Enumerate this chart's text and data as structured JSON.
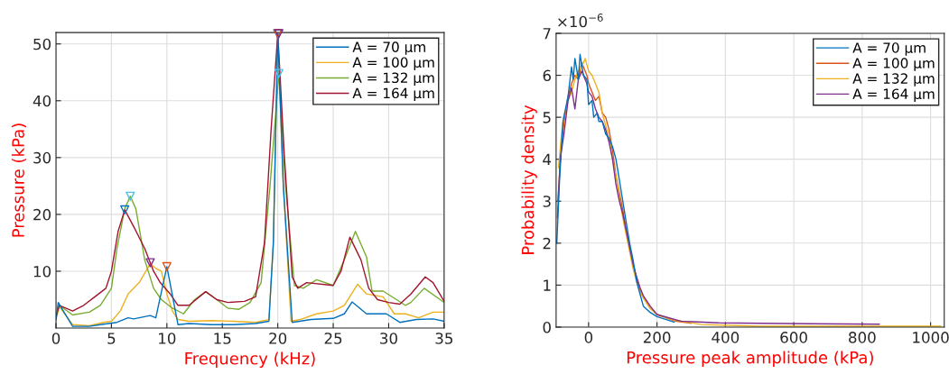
{
  "chart_data": [
    {
      "type": "line",
      "xlabel": "Frequency (kHz)",
      "ylabel": "Pressure (kPa)",
      "xlim": [
        0,
        35
      ],
      "ylim": [
        0,
        52
      ],
      "xticks": [
        0,
        5,
        10,
        15,
        20,
        25,
        30,
        35
      ],
      "yticks": [
        10,
        20,
        30,
        40,
        50
      ],
      "grid": true,
      "legend": "top right",
      "marker": "none",
      "line_style": "solid",
      "series": [
        {
          "name": "A = 70 μm",
          "color": "#0072bd",
          "x": [
            0,
            0.2,
            1.5,
            3,
            4,
            5.5,
            6.5,
            7,
            8.5,
            9,
            10,
            11,
            12,
            14,
            16,
            18,
            19.2,
            19.6,
            20,
            20.5,
            21.3,
            23,
            25,
            26,
            26.7,
            28,
            29.8,
            31,
            32.5,
            34,
            35
          ],
          "values": [
            1.5,
            4.5,
            0.3,
            0.3,
            0.6,
            1.0,
            1.8,
            1.6,
            2.2,
            1.8,
            10.8,
            0.6,
            0.8,
            0.6,
            0.6,
            0.8,
            1.2,
            15,
            51.8,
            25,
            1.0,
            1.5,
            1.7,
            2.5,
            4.6,
            2.5,
            2.5,
            1.0,
            1.5,
            1.6,
            1.2
          ]
        },
        {
          "name": "A = 100 μm",
          "color": "#edb120",
          "x": [
            0,
            0.3,
            1.5,
            3,
            4.3,
            5,
            5.8,
            6.5,
            7.5,
            8.5,
            9,
            9.5,
            10,
            10.5,
            11,
            12,
            14,
            16,
            18,
            19.2,
            19.6,
            20,
            20.5,
            21.2,
            22,
            23.5,
            25,
            26,
            27.2,
            28,
            29.5,
            30.5,
            31.5,
            32.7,
            34,
            35
          ],
          "values": [
            1.5,
            3.8,
            0.6,
            0.4,
            1.0,
            1.2,
            3.0,
            6.0,
            8.0,
            11.3,
            10.5,
            10.0,
            6.0,
            3.0,
            1.5,
            1.2,
            1.3,
            1.2,
            1.0,
            1.5,
            15,
            51.5,
            25,
            1.2,
            1.5,
            2.5,
            3.0,
            4.0,
            7.7,
            6.0,
            5.5,
            2.5,
            2.5,
            1.8,
            2.8,
            2.8
          ]
        },
        {
          "name": "A = 132 μm",
          "color": "#77ac30",
          "x": [
            0,
            0.3,
            1.5,
            3,
            4,
            5,
            5.5,
            6.2,
            6.7,
            7.2,
            8,
            8.8,
            9.5,
            10.5,
            11.5,
            12.5,
            13.5,
            14.5,
            15.5,
            16.5,
            17.5,
            18.5,
            19.3,
            20.1,
            20.7,
            21.5,
            22.3,
            23.5,
            25,
            26,
            27,
            28,
            28.5,
            29.5,
            31.5,
            32,
            33.2,
            35
          ],
          "values": [
            2.0,
            4.0,
            2.3,
            2.8,
            4.0,
            7.0,
            14,
            21,
            23.2,
            21,
            12,
            7.0,
            5.0,
            3.5,
            2.5,
            5.0,
            6.4,
            5.0,
            3.5,
            3.3,
            4.5,
            8.0,
            25,
            44.8,
            25,
            7.5,
            7.0,
            8.5,
            7.5,
            12,
            17,
            12.5,
            6.5,
            6.5,
            4.0,
            4.5,
            7.0,
            4.5
          ]
        },
        {
          "name": "A = 164 μm",
          "color": "#a2142f",
          "x": [
            0,
            0.3,
            1.5,
            2.5,
            3.5,
            4.5,
            5,
            5.6,
            6.2,
            7.1,
            8,
            8.8,
            9.4,
            10.3,
            11,
            12,
            13.5,
            14.5,
            15.5,
            17,
            18,
            18.8,
            19.4,
            20,
            20.6,
            21.3,
            21.8,
            22.6,
            25,
            25.7,
            26.5,
            27.5,
            28.2,
            29,
            30,
            31,
            32,
            33.3,
            34,
            35
          ],
          "values": [
            2.0,
            4.0,
            3.0,
            4.0,
            5.5,
            7.0,
            10,
            17,
            20.8,
            17.5,
            14,
            10,
            8.0,
            6.0,
            4.0,
            4.0,
            6.4,
            5.0,
            4.5,
            4.7,
            5.5,
            15,
            35,
            51.8,
            30,
            9.0,
            7.0,
            8.0,
            7.5,
            10,
            16,
            12,
            7.0,
            5.0,
            4.5,
            4.2,
            6.0,
            9.0,
            8.0,
            4.7
          ]
        },
        {
          "type": "scatter",
          "marker": "triangle",
          "x": [
            6.2,
            6.7,
            8.5,
            10,
            20,
            20,
            20.1,
            20.1
          ],
          "values": [
            20.8,
            23.2,
            11.5,
            10.8,
            51.8,
            51.8,
            51.8,
            44.8
          ],
          "colors": [
            "#0072bd",
            "#4dbeee",
            "#7e2f8e",
            "#d95319",
            "#0072bd",
            "#d95319",
            "#7e2f8e",
            "#4dbeee"
          ]
        }
      ]
    },
    {
      "type": "line",
      "xlabel": "Pressure peak amplitude (kPa)",
      "ylabel": "Probability density",
      "annotations": [
        "×10$^{−6}$"
      ],
      "xlim": [
        -95,
        1040
      ],
      "ylim": [
        0,
        7
      ],
      "xticks": [
        0,
        200,
        400,
        600,
        800,
        1000
      ],
      "yticks": [
        0,
        1,
        2,
        3,
        4,
        5,
        6,
        7
      ],
      "grid": true,
      "legend": "top right",
      "marker": "none",
      "line_style": "solid",
      "series": [
        {
          "name": "A = 70 μm",
          "color": "#0072bd",
          "x": [
            -93,
            -85,
            -75,
            -60,
            -50,
            -45,
            -40,
            -30,
            -25,
            -15,
            -5,
            0,
            10,
            15,
            25,
            30,
            40,
            50,
            60,
            70,
            80,
            90,
            100,
            110,
            120,
            130,
            140,
            150,
            160,
            180,
            200,
            250
          ],
          "values": [
            2.0,
            3.5,
            4.9,
            5.5,
            6.2,
            5.9,
            6.4,
            5.9,
            6.5,
            6.0,
            5.9,
            5.3,
            5.4,
            5.0,
            5.1,
            4.9,
            4.9,
            4.6,
            4.5,
            4.3,
            4.0,
            3.5,
            3.0,
            2.5,
            2.0,
            1.6,
            1.1,
            0.8,
            0.5,
            0.35,
            0.25,
            0.12
          ]
        },
        {
          "name": "A = 100 μm",
          "color": "#d95319",
          "x": [
            -90,
            -80,
            -70,
            -60,
            -50,
            -40,
            -30,
            -20,
            -15,
            -5,
            0,
            10,
            20,
            30,
            40,
            50,
            60,
            70,
            80,
            90,
            100,
            110,
            120,
            130,
            140,
            150,
            160,
            180,
            200,
            250,
            300
          ],
          "values": [
            3.0,
            4.3,
            5.0,
            5.5,
            5.8,
            6.0,
            5.9,
            6.3,
            6.2,
            6.0,
            5.8,
            5.6,
            5.4,
            5.5,
            5.1,
            5.0,
            4.7,
            4.2,
            3.6,
            3.2,
            2.8,
            2.3,
            1.9,
            1.5,
            1.2,
            0.9,
            0.7,
            0.45,
            0.3,
            0.15,
            0.09
          ]
        },
        {
          "name": "A = 132 μm",
          "color": "#edb120",
          "x": [
            -88,
            -78,
            -70,
            -60,
            -50,
            -40,
            -30,
            -20,
            -10,
            0,
            10,
            20,
            30,
            40,
            50,
            60,
            70,
            80,
            90,
            100,
            110,
            120,
            130,
            140,
            150,
            160,
            180,
            200,
            250,
            330,
            500,
            1030
          ],
          "values": [
            3.8,
            4.7,
            5.1,
            5.4,
            5.6,
            5.9,
            6.1,
            6.2,
            6.4,
            6.1,
            6.0,
            5.8,
            5.6,
            5.1,
            4.8,
            4.5,
            4.0,
            3.6,
            3.1,
            2.6,
            2.2,
            1.8,
            1.4,
            1.1,
            0.85,
            0.7,
            0.45,
            0.3,
            0.17,
            0.06,
            0.02,
            0.02
          ]
        },
        {
          "name": "A = 164 μm",
          "color": "#7e2f8e",
          "x": [
            -91,
            -83,
            -72,
            -60,
            -50,
            -40,
            -30,
            -20,
            -10,
            -5,
            0,
            10,
            20,
            30,
            40,
            50,
            60,
            70,
            80,
            90,
            100,
            110,
            120,
            130,
            140,
            150,
            160,
            180,
            200,
            270,
            380,
            500,
            650,
            850
          ],
          "values": [
            2.6,
            4.0,
            4.6,
            5.4,
            5.7,
            5.2,
            5.9,
            6.1,
            5.9,
            5.8,
            5.6,
            5.5,
            5.2,
            5.0,
            4.9,
            4.7,
            4.4,
            4.0,
            3.4,
            3.0,
            2.7,
            2.3,
            1.9,
            1.5,
            1.2,
            0.95,
            0.75,
            0.5,
            0.3,
            0.14,
            0.1,
            0.09,
            0.08,
            0.07
          ]
        }
      ]
    }
  ]
}
